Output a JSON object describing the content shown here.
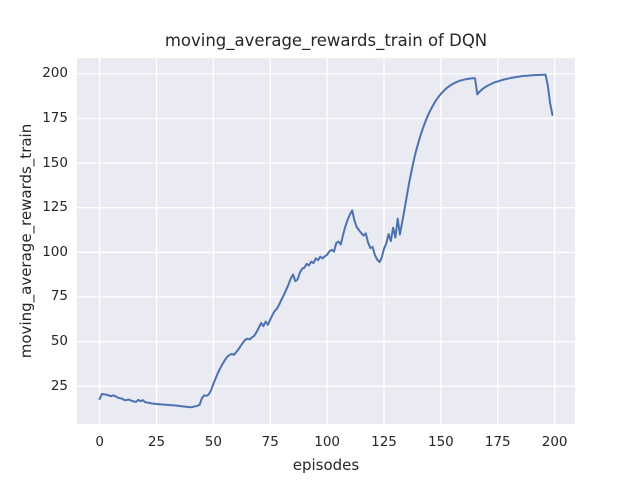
{
  "figure": {
    "background": "#ffffff"
  },
  "chart_data": {
    "type": "line",
    "title": "moving_average_rewards_train of DQN",
    "xlabel": "episodes",
    "ylabel": "moving_average_rewards_train",
    "x_ticks": [
      0,
      25,
      50,
      75,
      100,
      125,
      150,
      175,
      200
    ],
    "y_ticks": [
      25,
      50,
      75,
      100,
      125,
      150,
      175,
      200
    ],
    "xlim": [
      -9.95,
      208.95
    ],
    "ylim": [
      3.8,
      208.9
    ],
    "grid": true,
    "legend": "none",
    "style": {
      "axes_bg": "#eaeaf2",
      "grid_color": "#ffffff",
      "grid_width": 1.3,
      "line_color": "#4c72b0",
      "line_width": 2,
      "text_color": "#262626"
    },
    "series": [
      {
        "name": "moving_average_rewards_train",
        "x_start": 0,
        "x_step": 1,
        "values": [
          17.8,
          20.6,
          20.4,
          20.3,
          19.8,
          19.4,
          19.9,
          19.3,
          18.6,
          18.2,
          18.0,
          17.1,
          17.3,
          17.5,
          16.8,
          16.4,
          16.2,
          17.3,
          16.6,
          17.2,
          16.0,
          15.8,
          15.6,
          15.3,
          15.2,
          15.0,
          14.9,
          14.8,
          14.7,
          14.6,
          14.5,
          14.4,
          14.3,
          14.2,
          14.1,
          13.9,
          13.8,
          13.6,
          13.5,
          13.3,
          13.2,
          13.4,
          13.7,
          14.0,
          14.6,
          18.4,
          19.9,
          19.6,
          20.4,
          22.8,
          26.3,
          29.4,
          32.4,
          35.0,
          37.4,
          39.5,
          41.4,
          42.4,
          43.0,
          42.6,
          44.0,
          45.6,
          47.6,
          49.4,
          51.0,
          51.6,
          51.2,
          52.4,
          53.2,
          55.4,
          57.8,
          60.4,
          58.6,
          61.2,
          59.4,
          62.4,
          65.0,
          67.2,
          68.6,
          71.0,
          73.6,
          76.2,
          79.0,
          82.0,
          85.2,
          87.6,
          83.8,
          84.8,
          88.6,
          90.8,
          91.4,
          93.6,
          92.6,
          94.8,
          94.0,
          96.6,
          95.6,
          97.6,
          96.6,
          97.8,
          98.6,
          100.6,
          101.4,
          100.4,
          105.2,
          106.0,
          104.4,
          109.8,
          114.4,
          118.2,
          121.2,
          123.5,
          117.9,
          114.2,
          112.4,
          110.8,
          109.4,
          110.6,
          105.4,
          102.4,
          103.0,
          98.4,
          96.0,
          94.5,
          97.0,
          102.0,
          105.0,
          110.3,
          106.3,
          113.8,
          108.3,
          118.8,
          110.0,
          117.0,
          124.0,
          131.5,
          138.5,
          145.0,
          151.0,
          156.5,
          161.0,
          165.3,
          169.2,
          172.7,
          175.8,
          178.6,
          181.1,
          183.4,
          185.4,
          187.2,
          188.8,
          190.2,
          191.4,
          192.5,
          193.4,
          194.2,
          194.9,
          195.5,
          196.0,
          196.4,
          196.7,
          197.0,
          197.2,
          197.4,
          197.5,
          197.6,
          188.5,
          190.0,
          191.2,
          192.2,
          193.0,
          193.7,
          194.3,
          194.9,
          195.4,
          195.8,
          196.2,
          196.6,
          196.9,
          197.2,
          197.5,
          197.8,
          198.0,
          198.2,
          198.4,
          198.6,
          198.8,
          198.9,
          199.0,
          199.1,
          199.2,
          199.3,
          199.4,
          199.4,
          199.5,
          199.5,
          199.6,
          193.5,
          183.5,
          177.0
        ]
      }
    ]
  }
}
